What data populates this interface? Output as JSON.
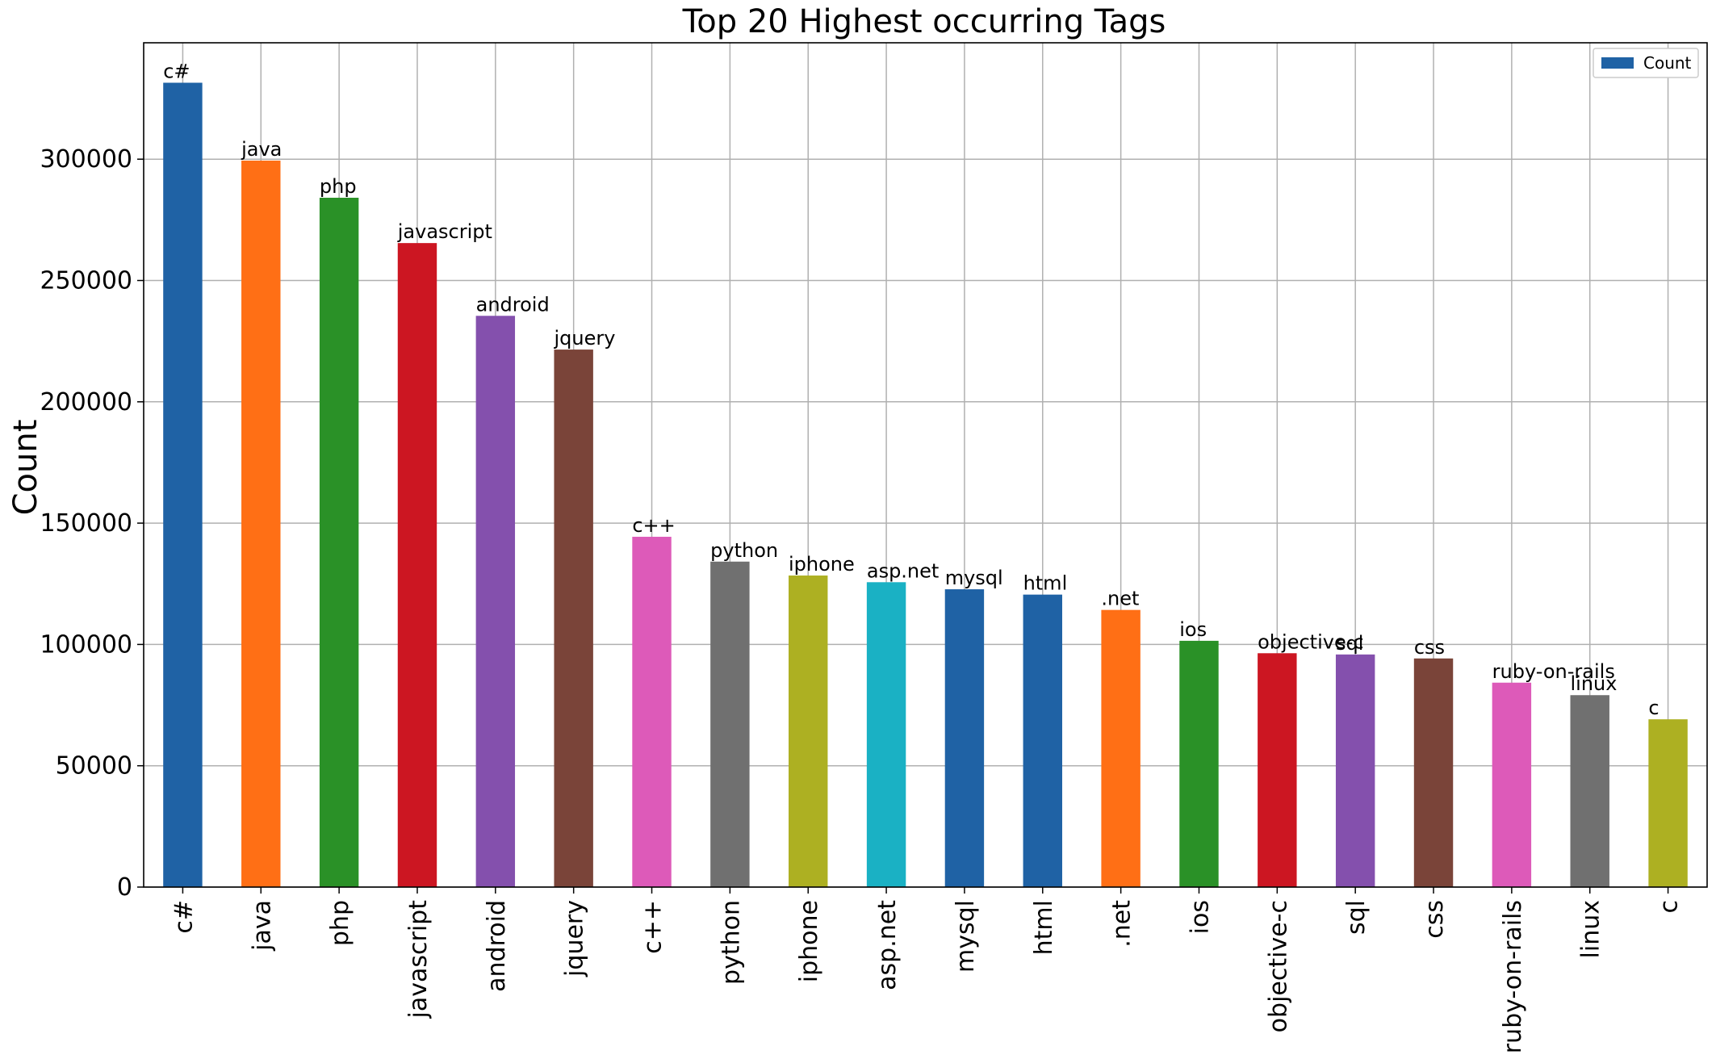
{
  "chart_data": {
    "type": "bar",
    "title": "Top 20 Highest occurring Tags",
    "xlabel": "",
    "ylabel": "Count",
    "ylim": [
      0,
      331505
    ],
    "yticks": [
      0,
      50000,
      100000,
      150000,
      200000,
      250000,
      300000
    ],
    "grid": true,
    "legend": {
      "position": "top-right",
      "entries": [
        "Count"
      ]
    },
    "categories": [
      "c#",
      "java",
      "php",
      "javascript",
      "android",
      "jquery",
      "c++",
      "python",
      "iphone",
      "asp.net",
      "mysql",
      "html",
      ".net",
      "ios",
      "objective-c",
      "sql",
      "css",
      "ruby-on-rails",
      "linux",
      "c"
    ],
    "series": [
      {
        "name": "Count",
        "values": [
          331505,
          299414,
          284103,
          265423,
          235436,
          221533,
          144370,
          134137,
          128402,
          125651,
          122736,
          120541,
          114221,
          101498,
          96380,
          95865,
          94226,
          84246,
          79094,
          69148
        ]
      }
    ],
    "bar_colors": [
      "#1f62a5",
      "#ff6f15",
      "#2a9127",
      "#cc1622",
      "#8450ad",
      "#7a4439",
      "#dd5ab9",
      "#707070",
      "#adb022",
      "#1ab1c4",
      "#1f62a5",
      "#1f62a5",
      "#ff6f15",
      "#2a9127",
      "#cc1622",
      "#8450ad",
      "#7a4439",
      "#dd5ab9",
      "#707070",
      "#adb022"
    ]
  }
}
